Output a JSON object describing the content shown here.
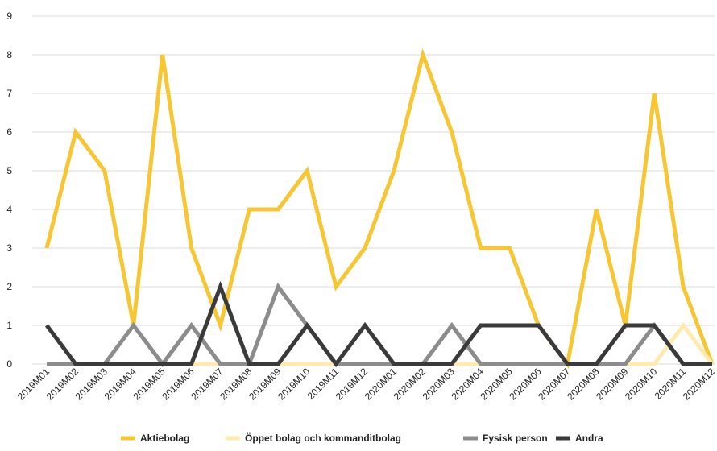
{
  "chart_data": {
    "type": "line",
    "title": "",
    "xlabel": "",
    "ylabel": "",
    "ylim": [
      0,
      9
    ],
    "yticks": [
      "0",
      "1",
      "2",
      "3",
      "4",
      "5",
      "6",
      "7",
      "8",
      "9"
    ],
    "grid": true,
    "legend_position": "bottom",
    "categories": [
      "2019M01",
      "2019M02",
      "2019M03",
      "2019M04",
      "2019M05",
      "2019M06",
      "2019M07",
      "2019M08",
      "2019M09",
      "2019M10",
      "2019M11",
      "2019M12",
      "2020M01",
      "2020M02",
      "2020M03",
      "2020M04",
      "2020M05",
      "2020M06",
      "2020M07",
      "2020M08",
      "2020M09",
      "2020M10",
      "2020M11",
      "2020M12"
    ],
    "series": [
      {
        "name": "Aktiebolag",
        "color": "#F7C634",
        "values": [
          3,
          6,
          5,
          1,
          8,
          3,
          1,
          4,
          4,
          5,
          2,
          3,
          5,
          8,
          6,
          3,
          3,
          1,
          0,
          4,
          1,
          7,
          2,
          0
        ]
      },
      {
        "name": "Öppet bolag och kommanditbolag",
        "color": "#FFEAB0",
        "values": [
          0,
          0,
          0,
          0,
          0,
          0,
          0,
          0,
          0,
          0,
          0,
          0,
          0,
          0,
          0,
          0,
          0,
          0,
          0,
          0,
          0,
          0,
          1,
          0
        ]
      },
      {
        "name": "Fysisk person",
        "color": "#8C8C8C",
        "values": [
          0,
          0,
          0,
          1,
          0,
          1,
          0,
          0,
          2,
          1,
          0,
          0,
          0,
          0,
          1,
          0,
          0,
          0,
          0,
          0,
          0,
          1,
          0,
          0
        ]
      },
      {
        "name": "Andra",
        "color": "#3A3A3A",
        "values": [
          1,
          0,
          0,
          0,
          0,
          0,
          2,
          0,
          0,
          1,
          0,
          1,
          0,
          0,
          0,
          1,
          1,
          1,
          0,
          0,
          1,
          1,
          0,
          0
        ]
      }
    ]
  }
}
